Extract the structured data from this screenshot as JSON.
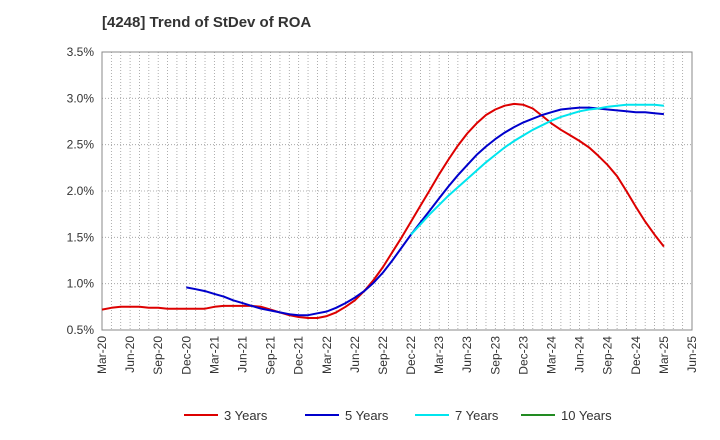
{
  "chart_data": {
    "type": "line",
    "title": "[4248]  Trend of StDev of ROA",
    "xlabel": "",
    "ylabel": "",
    "y_ticks": [
      "0.5%",
      "1.0%",
      "1.5%",
      "2.0%",
      "2.5%",
      "3.0%",
      "3.5%"
    ],
    "ylim": [
      0.5,
      3.5
    ],
    "x_ticks": [
      "Mar-20",
      "Jun-20",
      "Sep-20",
      "Dec-20",
      "Mar-21",
      "Jun-21",
      "Sep-21",
      "Dec-21",
      "Mar-22",
      "Jun-22",
      "Sep-22",
      "Dec-22",
      "Mar-23",
      "Jun-23",
      "Sep-23",
      "Dec-23",
      "Mar-24",
      "Jun-24",
      "Sep-24",
      "Dec-24",
      "Mar-25",
      "Jun-25"
    ],
    "grid": true,
    "legend_position": "bottom",
    "series": [
      {
        "name": "3 Years",
        "color": "#dd0000",
        "points": [
          [
            "Mar-20",
            0.72
          ],
          [
            "Apr-20",
            0.74
          ],
          [
            "May-20",
            0.75
          ],
          [
            "Jun-20",
            0.75
          ],
          [
            "Jul-20",
            0.75
          ],
          [
            "Aug-20",
            0.74
          ],
          [
            "Sep-20",
            0.74
          ],
          [
            "Oct-20",
            0.73
          ],
          [
            "Nov-20",
            0.73
          ],
          [
            "Dec-20",
            0.73
          ],
          [
            "Jan-21",
            0.73
          ],
          [
            "Feb-21",
            0.73
          ],
          [
            "Mar-21",
            0.75
          ],
          [
            "Apr-21",
            0.76
          ],
          [
            "May-21",
            0.76
          ],
          [
            "Jun-21",
            0.76
          ],
          [
            "Jul-21",
            0.76
          ],
          [
            "Aug-21",
            0.75
          ],
          [
            "Sep-21",
            0.72
          ],
          [
            "Oct-21",
            0.69
          ],
          [
            "Nov-21",
            0.66
          ],
          [
            "Dec-21",
            0.64
          ],
          [
            "Jan-22",
            0.63
          ],
          [
            "Feb-22",
            0.63
          ],
          [
            "Mar-22",
            0.65
          ],
          [
            "Apr-22",
            0.69
          ],
          [
            "May-22",
            0.75
          ],
          [
            "Jun-22",
            0.82
          ],
          [
            "Jul-22",
            0.92
          ],
          [
            "Aug-22",
            1.04
          ],
          [
            "Sep-22",
            1.18
          ],
          [
            "Oct-22",
            1.34
          ],
          [
            "Nov-22",
            1.5
          ],
          [
            "Dec-22",
            1.67
          ],
          [
            "Jan-23",
            1.84
          ],
          [
            "Feb-23",
            2.01
          ],
          [
            "Mar-23",
            2.18
          ],
          [
            "Apr-23",
            2.34
          ],
          [
            "May-23",
            2.49
          ],
          [
            "Jun-23",
            2.62
          ],
          [
            "Jul-23",
            2.73
          ],
          [
            "Aug-23",
            2.82
          ],
          [
            "Sep-23",
            2.88
          ],
          [
            "Oct-23",
            2.92
          ],
          [
            "Nov-23",
            2.94
          ],
          [
            "Dec-23",
            2.93
          ],
          [
            "Jan-24",
            2.89
          ],
          [
            "Feb-24",
            2.81
          ],
          [
            "Mar-24",
            2.73
          ],
          [
            "Apr-24",
            2.66
          ],
          [
            "May-24",
            2.6
          ],
          [
            "Jun-24",
            2.54
          ],
          [
            "Jul-24",
            2.47
          ],
          [
            "Aug-24",
            2.38
          ],
          [
            "Sep-24",
            2.28
          ],
          [
            "Oct-24",
            2.16
          ],
          [
            "Nov-24",
            2.0
          ],
          [
            "Dec-24",
            1.83
          ],
          [
            "Jan-25",
            1.67
          ],
          [
            "Feb-25",
            1.53
          ],
          [
            "Mar-25",
            1.4
          ]
        ]
      },
      {
        "name": "5 Years",
        "color": "#0000cc",
        "points": [
          [
            "Dec-20",
            0.96
          ],
          [
            "Jan-21",
            0.94
          ],
          [
            "Feb-21",
            0.92
          ],
          [
            "Mar-21",
            0.89
          ],
          [
            "Apr-21",
            0.86
          ],
          [
            "May-21",
            0.82
          ],
          [
            "Jun-21",
            0.79
          ],
          [
            "Jul-21",
            0.76
          ],
          [
            "Aug-21",
            0.73
          ],
          [
            "Sep-21",
            0.71
          ],
          [
            "Oct-21",
            0.69
          ],
          [
            "Nov-21",
            0.67
          ],
          [
            "Dec-21",
            0.66
          ],
          [
            "Jan-22",
            0.66
          ],
          [
            "Feb-22",
            0.68
          ],
          [
            "Mar-22",
            0.7
          ],
          [
            "Apr-22",
            0.74
          ],
          [
            "May-22",
            0.79
          ],
          [
            "Jun-22",
            0.85
          ],
          [
            "Jul-22",
            0.92
          ],
          [
            "Aug-22",
            1.01
          ],
          [
            "Sep-22",
            1.12
          ],
          [
            "Oct-22",
            1.25
          ],
          [
            "Nov-22",
            1.39
          ],
          [
            "Dec-22",
            1.53
          ],
          [
            "Jan-23",
            1.66
          ],
          [
            "Feb-23",
            1.79
          ],
          [
            "Mar-23",
            1.92
          ],
          [
            "Apr-23",
            2.05
          ],
          [
            "May-23",
            2.17
          ],
          [
            "Jun-23",
            2.28
          ],
          [
            "Jul-23",
            2.39
          ],
          [
            "Aug-23",
            2.48
          ],
          [
            "Sep-23",
            2.56
          ],
          [
            "Oct-23",
            2.63
          ],
          [
            "Nov-23",
            2.69
          ],
          [
            "Dec-23",
            2.74
          ],
          [
            "Jan-24",
            2.78
          ],
          [
            "Feb-24",
            2.82
          ],
          [
            "Mar-24",
            2.85
          ],
          [
            "Apr-24",
            2.88
          ],
          [
            "May-24",
            2.89
          ],
          [
            "Jun-24",
            2.9
          ],
          [
            "Jul-24",
            2.9
          ],
          [
            "Aug-24",
            2.89
          ],
          [
            "Sep-24",
            2.88
          ],
          [
            "Oct-24",
            2.87
          ],
          [
            "Nov-24",
            2.86
          ],
          [
            "Dec-24",
            2.85
          ],
          [
            "Jan-25",
            2.85
          ],
          [
            "Feb-25",
            2.84
          ],
          [
            "Mar-25",
            2.83
          ]
        ]
      },
      {
        "name": "7 Years",
        "color": "#00e5ee",
        "points": [
          [
            "Dec-22",
            1.53
          ],
          [
            "Jan-23",
            1.64
          ],
          [
            "Feb-23",
            1.75
          ],
          [
            "Mar-23",
            1.85
          ],
          [
            "Apr-23",
            1.95
          ],
          [
            "May-23",
            2.04
          ],
          [
            "Jun-23",
            2.13
          ],
          [
            "Jul-23",
            2.22
          ],
          [
            "Aug-23",
            2.31
          ],
          [
            "Sep-23",
            2.39
          ],
          [
            "Oct-23",
            2.47
          ],
          [
            "Nov-23",
            2.54
          ],
          [
            "Dec-23",
            2.6
          ],
          [
            "Jan-24",
            2.66
          ],
          [
            "Feb-24",
            2.71
          ],
          [
            "Mar-24",
            2.76
          ],
          [
            "Apr-24",
            2.8
          ],
          [
            "May-24",
            2.83
          ],
          [
            "Jun-24",
            2.86
          ],
          [
            "Jul-24",
            2.88
          ],
          [
            "Aug-24",
            2.89
          ],
          [
            "Sep-24",
            2.91
          ],
          [
            "Oct-24",
            2.92
          ],
          [
            "Nov-24",
            2.93
          ],
          [
            "Dec-24",
            2.93
          ],
          [
            "Jan-25",
            2.93
          ],
          [
            "Feb-25",
            2.93
          ],
          [
            "Mar-25",
            2.92
          ]
        ]
      },
      {
        "name": "10 Years",
        "color": "#228b22",
        "points": []
      }
    ]
  }
}
